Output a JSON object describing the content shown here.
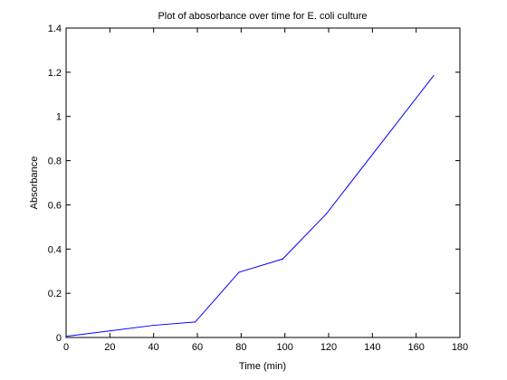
{
  "chart_data": {
    "type": "line",
    "title": "Plot of abosorbance over time for E. coli culture",
    "xlabel": "Time (min)",
    "ylabel": "Absorbance",
    "xlim": [
      0,
      180
    ],
    "ylim": [
      0,
      1.4
    ],
    "xticks": [
      0,
      20,
      40,
      60,
      80,
      100,
      120,
      140,
      160,
      180
    ],
    "yticks": [
      0,
      0.2,
      0.4,
      0.6,
      0.8,
      1,
      1.2,
      1.4
    ],
    "xtick_labels": [
      "0",
      "20",
      "40",
      "60",
      "80",
      "100",
      "120",
      "140",
      "160",
      "180"
    ],
    "ytick_labels": [
      "0",
      "0.2",
      "0.4",
      "0.6",
      "0.8",
      "1",
      "1.2",
      "1.4"
    ],
    "grid": false,
    "series": [
      {
        "color": "#0000ff",
        "x": [
          0,
          40,
          59,
          79,
          99,
          119,
          168
        ],
        "y": [
          0.005,
          0.055,
          0.07,
          0.295,
          0.355,
          0.56,
          1.185
        ]
      }
    ]
  }
}
